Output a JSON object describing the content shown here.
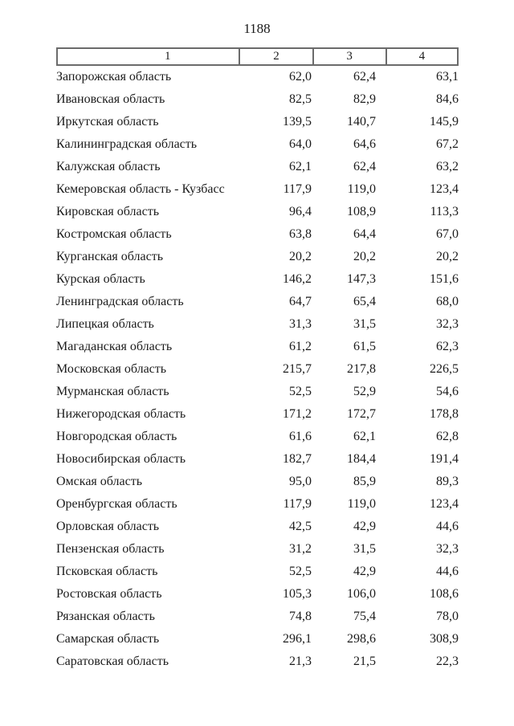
{
  "page": {
    "number": "1188"
  },
  "table": {
    "columns": [
      "1",
      "2",
      "3",
      "4"
    ],
    "rows": [
      {
        "name": "Запорожская область",
        "col2": "62,0",
        "col3": "62,4",
        "col4": "63,1"
      },
      {
        "name": "Ивановская область",
        "col2": "82,5",
        "col3": "82,9",
        "col4": "84,6"
      },
      {
        "name": "Иркутская область",
        "col2": "139,5",
        "col3": "140,7",
        "col4": "145,9"
      },
      {
        "name": "Калининградская область",
        "col2": "64,0",
        "col3": "64,6",
        "col4": "67,2"
      },
      {
        "name": "Калужская область",
        "col2": "62,1",
        "col3": "62,4",
        "col4": "63,2"
      },
      {
        "name": "Кемеровская область - Кузбасс",
        "col2": "117,9",
        "col3": "119,0",
        "col4": "123,4"
      },
      {
        "name": "Кировская область",
        "col2": "96,4",
        "col3": "108,9",
        "col4": "113,3"
      },
      {
        "name": "Костромская область",
        "col2": "63,8",
        "col3": "64,4",
        "col4": "67,0"
      },
      {
        "name": "Курганская область",
        "col2": "20,2",
        "col3": "20,2",
        "col4": "20,2"
      },
      {
        "name": "Курская область",
        "col2": "146,2",
        "col3": "147,3",
        "col4": "151,6"
      },
      {
        "name": "Ленинградская область",
        "col2": "64,7",
        "col3": "65,4",
        "col4": "68,0"
      },
      {
        "name": "Липецкая область",
        "col2": "31,3",
        "col3": "31,5",
        "col4": "32,3"
      },
      {
        "name": "Магаданская область",
        "col2": "61,2",
        "col3": "61,5",
        "col4": "62,3"
      },
      {
        "name": "Московская область",
        "col2": "215,7",
        "col3": "217,8",
        "col4": "226,5"
      },
      {
        "name": "Мурманская область",
        "col2": "52,5",
        "col3": "52,9",
        "col4": "54,6"
      },
      {
        "name": "Нижегородская область",
        "col2": "171,2",
        "col3": "172,7",
        "col4": "178,8"
      },
      {
        "name": "Новгородская область",
        "col2": "61,6",
        "col3": "62,1",
        "col4": "62,8"
      },
      {
        "name": "Новосибирская область",
        "col2": "182,7",
        "col3": "184,4",
        "col4": "191,4"
      },
      {
        "name": "Омская область",
        "col2": "95,0",
        "col3": "85,9",
        "col4": "89,3"
      },
      {
        "name": "Оренбургская область",
        "col2": "117,9",
        "col3": "119,0",
        "col4": "123,4"
      },
      {
        "name": "Орловская область",
        "col2": "42,5",
        "col3": "42,9",
        "col4": "44,6"
      },
      {
        "name": "Пензенская область",
        "col2": "31,2",
        "col3": "31,5",
        "col4": "32,3"
      },
      {
        "name": "Псковская область",
        "col2": "52,5",
        "col3": "42,9",
        "col4": "44,6"
      },
      {
        "name": "Ростовская область",
        "col2": "105,3",
        "col3": "106,0",
        "col4": "108,6"
      },
      {
        "name": "Рязанская область",
        "col2": "74,8",
        "col3": "75,4",
        "col4": "78,0"
      },
      {
        "name": "Самарская область",
        "col2": "296,1",
        "col3": "298,6",
        "col4": "308,9"
      },
      {
        "name": "Саратовская область",
        "col2": "21,3",
        "col3": "21,5",
        "col4": "22,3"
      }
    ]
  }
}
